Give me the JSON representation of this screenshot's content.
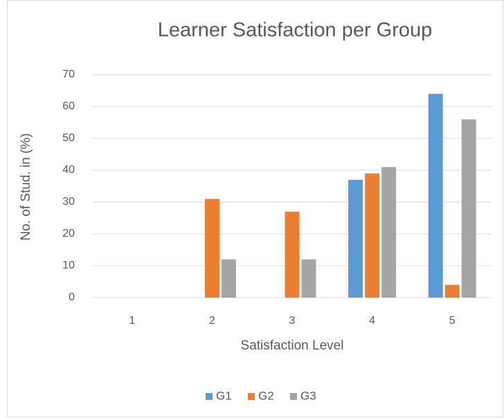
{
  "chart_data": {
    "type": "bar",
    "title": "Learner Satisfaction per Group",
    "x_label": "Satisfaction Level",
    "y_label": "No. of Stud. in  (%)",
    "categories": [
      "1",
      "2",
      "3",
      "4",
      "5"
    ],
    "series": [
      {
        "name": "G1",
        "color": "#5b9bd5",
        "values": [
          0,
          0,
          0,
          37,
          64
        ]
      },
      {
        "name": "G2",
        "color": "#ed7d31",
        "values": [
          0,
          31,
          27,
          39,
          4
        ]
      },
      {
        "name": "G3",
        "color": "#a5a5a5",
        "values": [
          0,
          12,
          12,
          41,
          56
        ]
      }
    ],
    "ylim": [
      0,
      70
    ],
    "yticks": [
      0,
      10,
      20,
      30,
      40,
      50,
      60,
      70
    ],
    "grid": true,
    "legend": "bottom"
  }
}
